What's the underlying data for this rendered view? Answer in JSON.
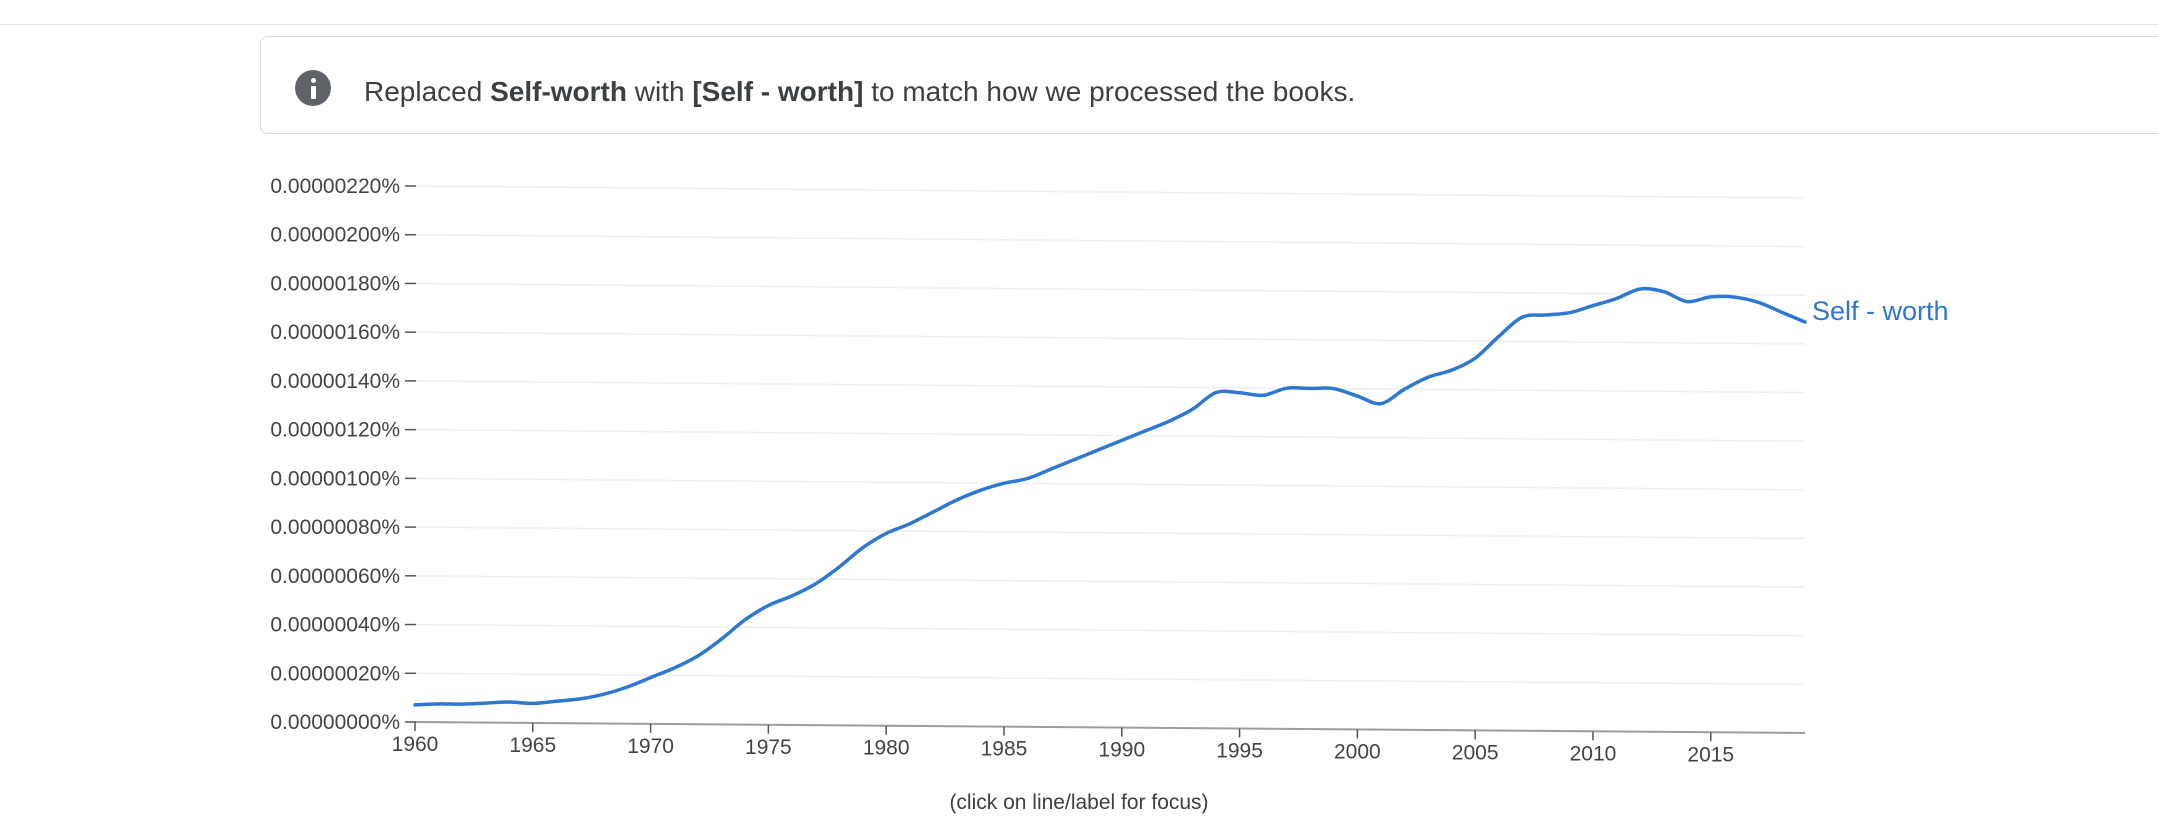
{
  "notice": {
    "prefix": "Replaced ",
    "original_term": "Self-worth",
    "middle": " with ",
    "replacement_term": "[Self - worth]",
    "suffix": " to match how we processed the books."
  },
  "footnote": "(click on line/label for focus)",
  "colors": {
    "series": "#2e78d2",
    "axis": "#9e9e9e",
    "grid": "#efefef",
    "text": "#3c4043"
  },
  "chart_data": {
    "type": "line",
    "title": "",
    "xlabel": "",
    "ylabel": "",
    "xlim": [
      1960,
      2019
    ],
    "ylim": [
      0,
      2.2e-06
    ],
    "x_ticks": [
      "1960",
      "1965",
      "1970",
      "1975",
      "1980",
      "1985",
      "1990",
      "1995",
      "2000",
      "2005",
      "2010",
      "2015"
    ],
    "y_ticks": [
      "0.00000000%",
      "0.00000020%",
      "0.00000040%",
      "0.00000060%",
      "0.00000080%",
      "0.00000100%",
      "0.00000120%",
      "0.00000140%",
      "0.00000160%",
      "0.00000180%",
      "0.00000200%",
      "0.00000220%"
    ],
    "grid": true,
    "series": [
      {
        "name": "Self - worth",
        "x": [
          1960,
          1961,
          1962,
          1963,
          1964,
          1965,
          1966,
          1967,
          1968,
          1969,
          1970,
          1971,
          1972,
          1973,
          1974,
          1975,
          1976,
          1977,
          1978,
          1979,
          1980,
          1981,
          1982,
          1983,
          1984,
          1985,
          1986,
          1987,
          1988,
          1989,
          1990,
          1991,
          1992,
          1993,
          1994,
          1995,
          1996,
          1997,
          1998,
          1999,
          2000,
          2001,
          2002,
          2003,
          2004,
          2005,
          2006,
          2007,
          2008,
          2009,
          2010,
          2011,
          2012,
          2013,
          2014,
          2015,
          2016,
          2017,
          2018,
          2019
        ],
        "values": [
          7e-08,
          7.5e-08,
          7.5e-08,
          8e-08,
          8.5e-08,
          8e-08,
          9e-08,
          1e-07,
          1.2e-07,
          1.5e-07,
          1.9e-07,
          2.3e-07,
          2.8e-07,
          3.5e-07,
          4.3e-07,
          4.9e-07,
          5.3e-07,
          5.8e-07,
          6.5e-07,
          7.3e-07,
          7.9e-07,
          8.3e-07,
          8.8e-07,
          9.3e-07,
          9.7e-07,
          1e-06,
          1.02e-06,
          1.06e-06,
          1.1e-06,
          1.14e-06,
          1.18e-06,
          1.22e-06,
          1.26e-06,
          1.31e-06,
          1.38e-06,
          1.38e-06,
          1.37e-06,
          1.4e-06,
          1.4e-06,
          1.4e-06,
          1.37e-06,
          1.34e-06,
          1.4e-06,
          1.45e-06,
          1.48e-06,
          1.53e-06,
          1.62e-06,
          1.7e-06,
          1.71e-06,
          1.72e-06,
          1.75e-06,
          1.78e-06,
          1.82e-06,
          1.81e-06,
          1.77e-06,
          1.79e-06,
          1.79e-06,
          1.77e-06,
          1.73e-06,
          1.69e-06
        ]
      }
    ]
  }
}
